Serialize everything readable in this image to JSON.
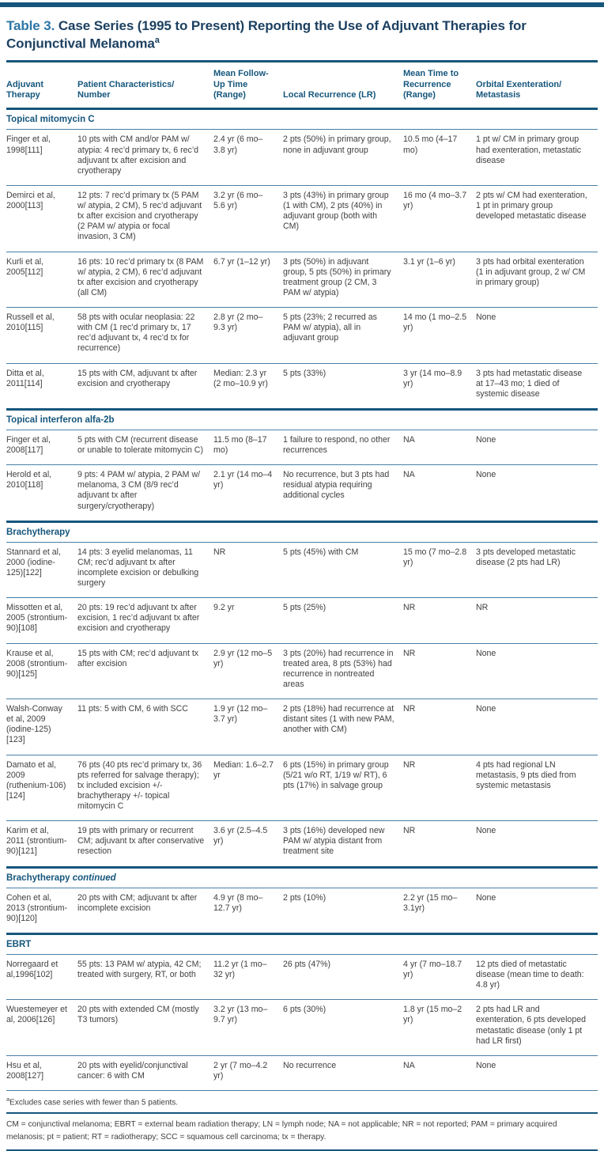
{
  "header": {
    "title_label": "Table 3.",
    "title_text": " Case Series (1995 to Present) Reporting the Use of Adjuvant Therapies for Conjunctival Melanoma",
    "title_footnote_marker": "a"
  },
  "table": {
    "columns": [
      "Adjuvant\nTherapy",
      "Patient Characteristics/\nNumber",
      "Mean Follow-\nUp Time\n(Range)",
      "Local Recurrence (LR)",
      "Mean Time to\nRecurrence\n(Range)",
      "Orbital Exenteration/\nMetastasis"
    ],
    "fields": [
      "study",
      "characteristics",
      "follow_up",
      "local_recurrence",
      "time_to_recurrence",
      "orbital"
    ],
    "sections": [
      {
        "title": "Topical mitomycin C",
        "suffix": "",
        "rows": [
          {
            "study": "Finger et al, 1998[111]",
            "characteristics": "10 pts with CM and/or PAM w/ atypia: 4 rec’d primary tx, 6 rec’d adjuvant tx after excision and cryotherapy",
            "follow_up": "2.4 yr (6 mo–3.8 yr)",
            "local_recurrence": "2 pts (50%) in primary group, none in adjuvant group",
            "time_to_recurrence": "10.5 mo (4–17 mo)",
            "orbital": "1 pt w/ CM in primary group had exenteration, metastatic disease"
          },
          {
            "study": "Demirci et al, 2000[113]",
            "characteristics": "12 pts: 7 rec’d primary tx (5 PAM w/ atypia, 2 CM), 5 rec’d adjuvant tx after excision and cryotherapy (2 PAM w/ atypia or focal invasion, 3 CM)",
            "follow_up": "3.2 yr (6 mo–5.6 yr)",
            "local_recurrence": "3 pts (43%) in primary group (1 with CM), 2 pts (40%) in adjuvant group (both with CM)",
            "time_to_recurrence": "16 mo (4 mo–3.7 yr)",
            "orbital": "2 pts w/ CM had exenteration, 1 pt in primary group developed metastatic disease"
          },
          {
            "study": "Kurli et al, 2005[112]",
            "characteristics": "16 pts: 10 rec’d primary tx (8 PAM w/ atypia, 2 CM), 6 rec’d adjuvant tx after excision and cryotherapy (all CM)",
            "follow_up": "6.7 yr (1–12 yr)",
            "local_recurrence": "3 pts (50%) in adjuvant group, 5 pts (50%) in primary treatment group (2 CM, 3 PAM w/ atypia)",
            "time_to_recurrence": "3.1 yr (1–6 yr)",
            "orbital": "3 pts had orbital exenteration (1 in adjuvant group, 2 w/ CM in primary group)"
          },
          {
            "study": "Russell et al, 2010[115]",
            "characteristics": "58 pts with ocular neoplasia: 22 with CM (1 rec’d primary tx, 17 rec’d adjuvant tx, 4 rec’d tx for recurrence)",
            "follow_up": "2.8 yr (2 mo–9.3 yr)",
            "local_recurrence": "5 pts (23%; 2 recurred as PAM w/ atypia), all in adjuvant group",
            "time_to_recurrence": "14 mo (1 mo–2.5 yr)",
            "orbital": "None"
          },
          {
            "study": "Ditta et al, 2011[114]",
            "characteristics": "15 pts with CM, adjuvant tx after excision and cryotherapy",
            "follow_up": "Median: 2.3 yr (2 mo–10.9 yr)",
            "local_recurrence": "5 pts (33%)",
            "time_to_recurrence": "3 yr (14 mo–8.9 yr)",
            "orbital": "3 pts had metastatic disease at 17–43 mo; 1 died of systemic disease"
          }
        ]
      },
      {
        "title": "Topical interferon alfa-2b",
        "suffix": "",
        "rows": [
          {
            "study": "Finger et al, 2008[117]",
            "characteristics": "5 pts with CM (recurrent disease or unable to tolerate mitomycin C)",
            "follow_up": "11.5 mo (8–17 mo)",
            "local_recurrence": "1 failure to respond, no other recurrences",
            "time_to_recurrence": "NA",
            "orbital": "None"
          },
          {
            "study": "Herold et al, 2010[118]",
            "characteristics": "9 pts: 4 PAM w/ atypia, 2 PAM w/ melanoma, 3 CM (8/9 rec’d adjuvant tx after surgery/cryotherapy)",
            "follow_up": "2.1 yr (14 mo–4 yr)",
            "local_recurrence": "No recurrence, but 3 pts had residual atypia requiring additional cycles",
            "time_to_recurrence": "NA",
            "orbital": "None"
          }
        ]
      },
      {
        "title": "Brachytherapy",
        "suffix": "",
        "rows": [
          {
            "study": "Stannard et al, 2000 (iodine-125)[122]",
            "characteristics": "14 pts: 3 eyelid melanomas, 11 CM; rec’d adjuvant tx after incomplete excision or debulking surgery",
            "follow_up": "NR",
            "local_recurrence": "5 pts (45%) with CM",
            "time_to_recurrence": "15 mo (7 mo–2.8 yr)",
            "orbital": "3 pts developed metastatic disease (2 pts had LR)"
          },
          {
            "study": "Missotten et al, 2005 (strontium-90)[108]",
            "characteristics": "20 pts: 19 rec’d adjuvant tx after excision, 1 rec’d adjuvant tx after excision and cryotherapy",
            "follow_up": "9.2 yr",
            "local_recurrence": "5 pts (25%)",
            "time_to_recurrence": "NR",
            "orbital": "NR"
          },
          {
            "study": "Krause et al, 2008 (strontium-90)[125]",
            "characteristics": "15 pts with CM; rec’d adjuvant tx after excision",
            "follow_up": "2.9 yr (12 mo–5 yr)",
            "local_recurrence": "3 pts (20%) had recurrence in treated area, 8 pts (53%) had recurrence in nontreated areas",
            "time_to_recurrence": "NR",
            "orbital": "None"
          },
          {
            "study": "Walsh-Conway et al, 2009 (iodine-125)[123]",
            "characteristics": "11 pts: 5 with CM, 6 with SCC",
            "follow_up": "1.9 yr (12 mo–3.7 yr)",
            "local_recurrence": "2 pts (18%) had recurrence at distant sites (1 with new PAM, another with CM)",
            "time_to_recurrence": "NR",
            "orbital": "None"
          },
          {
            "study": "Damato et al, 2009 (ruthenium-106)[124]",
            "characteristics": "76 pts (40 pts rec’d primary tx, 36 pts referred for salvage therapy); tx included excision +/- brachytherapy +/- topical mitomycin C",
            "follow_up": "Median: 1.6–2.7 yr",
            "local_recurrence": "6 pts (15%) in primary group (5/21 w/o RT, 1/19 w/ RT), 6 pts (17%) in salvage group",
            "time_to_recurrence": "NR",
            "orbital": "4 pts had regional LN metastasis, 9 pts died from systemic metastasis"
          },
          {
            "study": "Karim et al, 2011 (strontium-90)[121]",
            "characteristics": "19 pts with primary or recurrent CM; adjuvant tx after conservative resection",
            "follow_up": "3.6 yr (2.5–4.5 yr)",
            "local_recurrence": "3 pts (16%) developed new PAM w/ atypia distant from treatment site",
            "time_to_recurrence": "NR",
            "orbital": "None"
          }
        ]
      },
      {
        "title": "Brachytherapy",
        "suffix": "continued",
        "rows": [
          {
            "study": "Cohen et al, 2013 (strontium-90)[120]",
            "characteristics": "20 pts with CM; adjuvant tx after incomplete excision",
            "follow_up": "4.9 yr (8 mo–12.7 yr)",
            "local_recurrence": "2 pts (10%)",
            "time_to_recurrence": "2.2 yr (15 mo–3.1yr)",
            "orbital": "None"
          }
        ]
      },
      {
        "title": "EBRT",
        "suffix": "",
        "rows": [
          {
            "study": "Norregaard et al,1996[102]",
            "characteristics": "55 pts: 13 PAM w/ atypia, 42 CM; treated with surgery, RT, or both",
            "follow_up": "11.2 yr (1 mo–32 yr)",
            "local_recurrence": "26 pts (47%)",
            "time_to_recurrence": "4 yr (7 mo–18.7 yr)",
            "orbital": "12 pts died of metastatic disease (mean time to death: 4.8 yr)"
          },
          {
            "study": "Wuestemeyer et al, 2006[126]",
            "characteristics": "20 pts with extended CM (mostly T3 tumors)",
            "follow_up": "3.2 yr (13 mo–9.7 yr)",
            "local_recurrence": "6 pts (30%)",
            "time_to_recurrence": "1.8 yr (15 mo–2 yr)",
            "orbital": "2 pts had LR and exenteration, 6 pts developed metastatic disease (only 1 pt had LR first)"
          },
          {
            "study": "Hsu et al, 2008[127]",
            "characteristics": "20 pts with eyelid/conjunctival cancer: 6 with CM",
            "follow_up": "2 yr (7 mo–4.2 yr)",
            "local_recurrence": "No recurrence",
            "time_to_recurrence": "NA",
            "orbital": "None"
          }
        ]
      }
    ]
  },
  "footnotes": {
    "marker": "a",
    "exclusion": "Excludes case series with fewer than 5 patients.",
    "abbreviations": "CM = conjunctival melanoma; EBRT = external beam radiation therapy; LN = lymph node; NA = not applicable; NR = not reported; PAM = primary acquired melanosis; pt = patient; RT = radiotherapy; SCC = squamous cell carcinoma; tx = therapy."
  },
  "colors": {
    "accent_dark_blue": "#15567c",
    "title_label_blue": "#2e76a6",
    "title_text_navy": "#1c4061",
    "rule_thin_blue": "#4a7fa5",
    "body_text": "#3f3f3f"
  }
}
